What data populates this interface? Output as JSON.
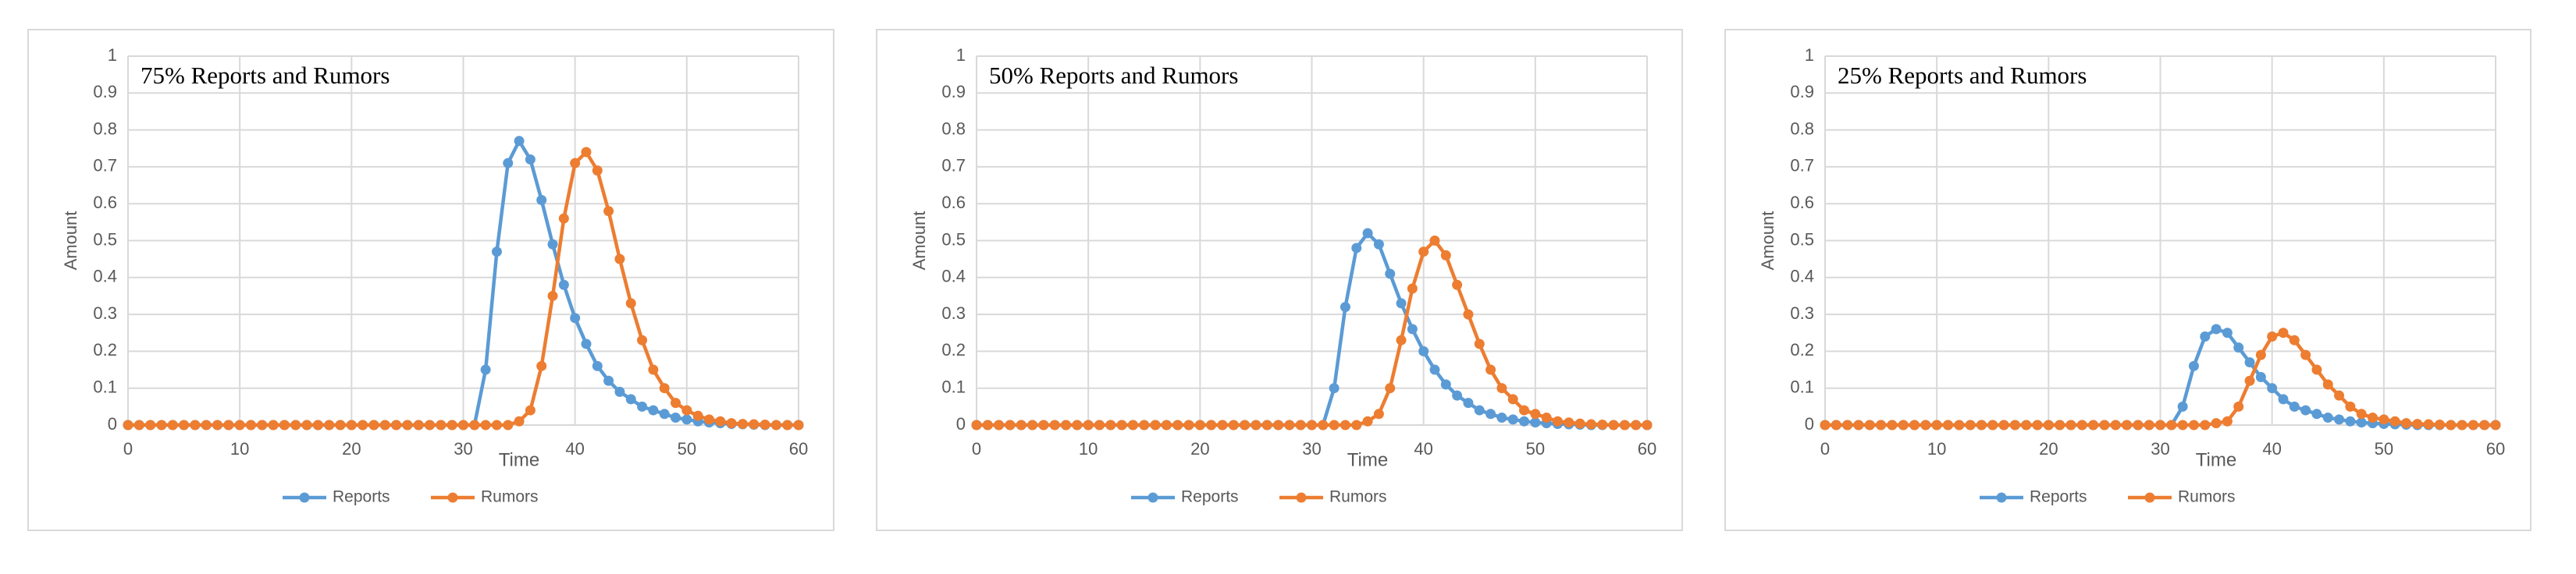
{
  "chart_data": [
    {
      "type": "line",
      "title": "75% Reports and Rumors",
      "x_label": "Time",
      "y_label": "Amount",
      "x": [
        0,
        1,
        2,
        3,
        4,
        5,
        6,
        7,
        8,
        9,
        10,
        11,
        12,
        13,
        14,
        15,
        16,
        17,
        18,
        19,
        20,
        21,
        22,
        23,
        24,
        25,
        26,
        27,
        28,
        29,
        30,
        31,
        32,
        33,
        34,
        35,
        36,
        37,
        38,
        39,
        40,
        41,
        42,
        43,
        44,
        45,
        46,
        47,
        48,
        49,
        50,
        51,
        52,
        53,
        54,
        55,
        56,
        57,
        58,
        59,
        60
      ],
      "series": [
        {
          "name": "Reports",
          "color": "#5b9bd5",
          "values": [
            0,
            0,
            0,
            0,
            0,
            0,
            0,
            0,
            0,
            0,
            0,
            0,
            0,
            0,
            0,
            0,
            0,
            0,
            0,
            0,
            0,
            0,
            0,
            0,
            0,
            0,
            0,
            0,
            0,
            0,
            0,
            0,
            0.15,
            0.47,
            0.71,
            0.77,
            0.72,
            0.61,
            0.49,
            0.38,
            0.29,
            0.22,
            0.16,
            0.12,
            0.09,
            0.07,
            0.05,
            0.04,
            0.03,
            0.02,
            0.015,
            0.01,
            0.007,
            0.005,
            0.003,
            0.002,
            0.001,
            0,
            0,
            0,
            0
          ]
        },
        {
          "name": "Rumors",
          "color": "#ed7d31",
          "values": [
            0,
            0,
            0,
            0,
            0,
            0,
            0,
            0,
            0,
            0,
            0,
            0,
            0,
            0,
            0,
            0,
            0,
            0,
            0,
            0,
            0,
            0,
            0,
            0,
            0,
            0,
            0,
            0,
            0,
            0,
            0,
            0,
            0,
            0,
            0,
            0.01,
            0.04,
            0.16,
            0.35,
            0.56,
            0.71,
            0.74,
            0.69,
            0.58,
            0.45,
            0.33,
            0.23,
            0.15,
            0.1,
            0.06,
            0.04,
            0.025,
            0.015,
            0.01,
            0.005,
            0.003,
            0.002,
            0.001,
            0,
            0,
            0
          ]
        }
      ],
      "xlim": [
        0,
        60
      ],
      "ylim": [
        0,
        1
      ],
      "xticks": [
        0,
        10,
        20,
        30,
        40,
        50,
        60
      ],
      "yticks": [
        0,
        0.1,
        0.2,
        0.3,
        0.4,
        0.5,
        0.6,
        0.7,
        0.8,
        0.9,
        1
      ],
      "grid": true,
      "legend": "bottom"
    },
    {
      "type": "line",
      "title": "50% Reports and Rumors",
      "x_label": "Time",
      "y_label": "Amount",
      "x": [
        0,
        1,
        2,
        3,
        4,
        5,
        6,
        7,
        8,
        9,
        10,
        11,
        12,
        13,
        14,
        15,
        16,
        17,
        18,
        19,
        20,
        21,
        22,
        23,
        24,
        25,
        26,
        27,
        28,
        29,
        30,
        31,
        32,
        33,
        34,
        35,
        36,
        37,
        38,
        39,
        40,
        41,
        42,
        43,
        44,
        45,
        46,
        47,
        48,
        49,
        50,
        51,
        52,
        53,
        54,
        55,
        56,
        57,
        58,
        59,
        60
      ],
      "series": [
        {
          "name": "Reports",
          "color": "#5b9bd5",
          "values": [
            0,
            0,
            0,
            0,
            0,
            0,
            0,
            0,
            0,
            0,
            0,
            0,
            0,
            0,
            0,
            0,
            0,
            0,
            0,
            0,
            0,
            0,
            0,
            0,
            0,
            0,
            0,
            0,
            0,
            0,
            0,
            0,
            0.1,
            0.32,
            0.48,
            0.52,
            0.49,
            0.41,
            0.33,
            0.26,
            0.2,
            0.15,
            0.11,
            0.08,
            0.06,
            0.04,
            0.03,
            0.02,
            0.015,
            0.01,
            0.007,
            0.005,
            0.003,
            0.002,
            0.001,
            0,
            0,
            0,
            0,
            0,
            0
          ]
        },
        {
          "name": "Rumors",
          "color": "#ed7d31",
          "values": [
            0,
            0,
            0,
            0,
            0,
            0,
            0,
            0,
            0,
            0,
            0,
            0,
            0,
            0,
            0,
            0,
            0,
            0,
            0,
            0,
            0,
            0,
            0,
            0,
            0,
            0,
            0,
            0,
            0,
            0,
            0,
            0,
            0,
            0,
            0,
            0.01,
            0.03,
            0.1,
            0.23,
            0.37,
            0.47,
            0.5,
            0.46,
            0.38,
            0.3,
            0.22,
            0.15,
            0.1,
            0.07,
            0.04,
            0.03,
            0.02,
            0.01,
            0.007,
            0.004,
            0.002,
            0.001,
            0,
            0,
            0,
            0
          ]
        }
      ],
      "xlim": [
        0,
        60
      ],
      "ylim": [
        0,
        1
      ],
      "xticks": [
        0,
        10,
        20,
        30,
        40,
        50,
        60
      ],
      "yticks": [
        0,
        0.1,
        0.2,
        0.3,
        0.4,
        0.5,
        0.6,
        0.7,
        0.8,
        0.9,
        1
      ],
      "grid": true,
      "legend": "bottom"
    },
    {
      "type": "line",
      "title": "25% Reports and Rumors",
      "x_label": "Time",
      "y_label": "Amount",
      "x": [
        0,
        1,
        2,
        3,
        4,
        5,
        6,
        7,
        8,
        9,
        10,
        11,
        12,
        13,
        14,
        15,
        16,
        17,
        18,
        19,
        20,
        21,
        22,
        23,
        24,
        25,
        26,
        27,
        28,
        29,
        30,
        31,
        32,
        33,
        34,
        35,
        36,
        37,
        38,
        39,
        40,
        41,
        42,
        43,
        44,
        45,
        46,
        47,
        48,
        49,
        50,
        51,
        52,
        53,
        54,
        55,
        56,
        57,
        58,
        59,
        60
      ],
      "series": [
        {
          "name": "Reports",
          "color": "#5b9bd5",
          "values": [
            0,
            0,
            0,
            0,
            0,
            0,
            0,
            0,
            0,
            0,
            0,
            0,
            0,
            0,
            0,
            0,
            0,
            0,
            0,
            0,
            0,
            0,
            0,
            0,
            0,
            0,
            0,
            0,
            0,
            0,
            0,
            0,
            0.05,
            0.16,
            0.24,
            0.26,
            0.25,
            0.21,
            0.17,
            0.13,
            0.1,
            0.07,
            0.05,
            0.04,
            0.03,
            0.02,
            0.015,
            0.01,
            0.007,
            0.005,
            0.003,
            0.002,
            0.001,
            0,
            0,
            0,
            0,
            0,
            0,
            0,
            0
          ]
        },
        {
          "name": "Rumors",
          "color": "#ed7d31",
          "values": [
            0,
            0,
            0,
            0,
            0,
            0,
            0,
            0,
            0,
            0,
            0,
            0,
            0,
            0,
            0,
            0,
            0,
            0,
            0,
            0,
            0,
            0,
            0,
            0,
            0,
            0,
            0,
            0,
            0,
            0,
            0,
            0,
            0,
            0,
            0,
            0.005,
            0.01,
            0.05,
            0.12,
            0.19,
            0.24,
            0.25,
            0.23,
            0.19,
            0.15,
            0.11,
            0.08,
            0.05,
            0.03,
            0.02,
            0.015,
            0.01,
            0.005,
            0.003,
            0.002,
            0.001,
            0,
            0,
            0,
            0,
            0
          ]
        }
      ],
      "xlim": [
        0,
        60
      ],
      "ylim": [
        0,
        1
      ],
      "xticks": [
        0,
        10,
        20,
        30,
        40,
        50,
        60
      ],
      "yticks": [
        0,
        0.1,
        0.2,
        0.3,
        0.4,
        0.5,
        0.6,
        0.7,
        0.8,
        0.9,
        1
      ],
      "grid": true,
      "legend": "bottom"
    }
  ]
}
